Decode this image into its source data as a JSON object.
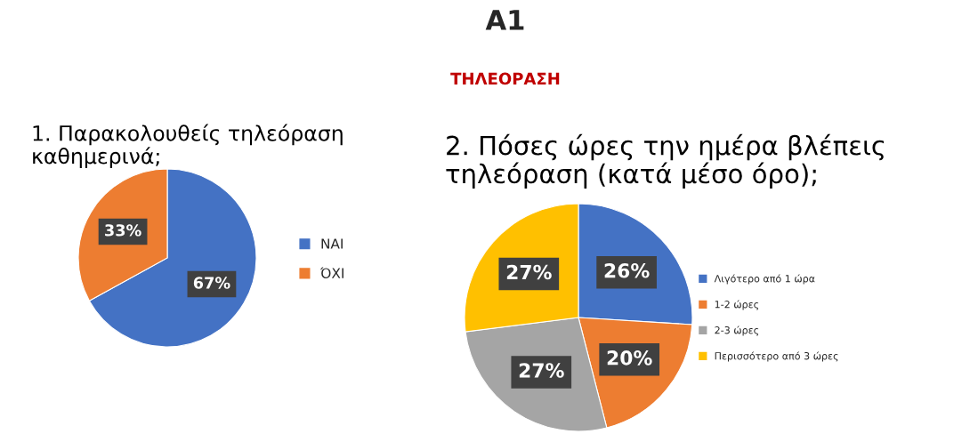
{
  "chart_data": [
    {
      "type": "pie",
      "title": "1. Παρακολουθείς τηλεόραση\nκαθημερινά;",
      "categories": [
        "ΝΑΙ",
        "ΌΧΙ"
      ],
      "values": [
        67,
        33
      ],
      "colors": [
        "#4472c4",
        "#ed7d31"
      ],
      "value_labels": [
        "67%",
        "33%"
      ],
      "legend": "right",
      "annotations": [
        "A1",
        "ΤΗΛΕΟΡΑΣΗ"
      ]
    },
    {
      "type": "pie",
      "title": "2. Πόσες ώρες την ημέρα βλέπεις\nτηλεόραση (κατά μέσο όρο);",
      "categories": [
        "Λιγότερο από 1 ώρα",
        "1-2 ώρες",
        "2-3 ώρες",
        "Περισσότερο από 3 ώρες"
      ],
      "values": [
        26,
        20,
        27,
        27
      ],
      "colors": [
        "#4472c4",
        "#ed7d31",
        "#a5a5a5",
        "#ffc000"
      ],
      "value_labels": [
        "26%",
        "20%",
        "27%",
        "27%"
      ],
      "legend": "right"
    }
  ]
}
